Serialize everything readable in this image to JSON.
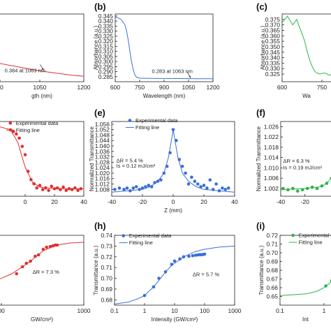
{
  "chart_data": [
    {
      "panel": "(a)",
      "type": "line",
      "xlabel": "…gth (nm)",
      "ylabel": "",
      "xlim": [
        900,
        1200
      ],
      "ylim": [
        0.4,
        0.3
      ],
      "x_ticks": [
        "…00",
        "1050",
        "1200"
      ],
      "y_ticks": [],
      "color": "#e03030",
      "annotations": [
        "0.384 at 1063 nm"
      ],
      "series": [
        {
          "x": [
            900,
            950,
            1000,
            1050,
            1100,
            1150,
            1200
          ],
          "y": [
            0.372,
            0.376,
            0.38,
            0.384,
            0.387,
            0.39,
            0.392
          ]
        }
      ]
    },
    {
      "panel": "(b)",
      "type": "line",
      "xlabel": "Wavelength (nm)",
      "ylabel": "Absorbance (a.u.)",
      "xlim": [
        600,
        1200
      ],
      "ylim": [
        0.28,
        0.347
      ],
      "x_ticks": [
        "600",
        "750",
        "900",
        "1050",
        "1200"
      ],
      "y_ticks": [
        "0.285",
        "0.290",
        "0.295",
        "0.300",
        "0.305",
        "0.310",
        "0.315",
        "0.320",
        "0.325",
        "0.330",
        "0.335",
        "0.340",
        "0.345"
      ],
      "color": "#3a6fd8",
      "annotations": [
        "0.283 at 1063 nm"
      ],
      "series": [
        {
          "x": [
            600,
            620,
            640,
            660,
            670,
            680,
            690,
            700,
            710,
            720,
            730,
            750,
            800,
            900,
            1000,
            1100,
            1200
          ],
          "y": [
            0.344,
            0.343,
            0.341,
            0.336,
            0.33,
            0.321,
            0.31,
            0.3,
            0.292,
            0.287,
            0.2845,
            0.2835,
            0.2833,
            0.2832,
            0.2831,
            0.283,
            0.283
          ]
        }
      ]
    },
    {
      "panel": "(c)",
      "type": "line",
      "xlabel": "Wa…",
      "ylabel": "Absorbance (a.u.)",
      "xlim": [
        600,
        800
      ],
      "ylim": [
        0.318,
        0.38
      ],
      "x_ticks": [
        "600",
        "750"
      ],
      "y_ticks": [
        "0.325",
        "0.330",
        "0.335",
        "0.340",
        "0.345",
        "0.350",
        "0.355",
        "0.360",
        "0.365",
        "0.370",
        "0.375"
      ],
      "color": "#2bb34a",
      "annotations": [],
      "series": [
        {
          "x": [
            600,
            620,
            640,
            655,
            665,
            675,
            685,
            695,
            705,
            715,
            725,
            740,
            760,
            780,
            800
          ],
          "y": [
            0.372,
            0.378,
            0.37,
            0.375,
            0.368,
            0.362,
            0.355,
            0.345,
            0.337,
            0.331,
            0.327,
            0.325,
            0.326,
            0.324,
            0.325
          ]
        }
      ]
    },
    {
      "panel": "(d)",
      "type": "scatter",
      "xlabel": "",
      "ylabel": "",
      "xlim": [
        -20,
        40
      ],
      "ylim": [
        0.98,
        1.07
      ],
      "x_ticks": [
        "…0",
        "0",
        "20",
        "40"
      ],
      "y_ticks": [],
      "color": "#e03030",
      "legend": [
        "Experimental data",
        "Fitting line"
      ],
      "annotations": [],
      "series": [
        {
          "name": "Experimental data",
          "x": [
            -10,
            -8,
            -6,
            -4,
            -2,
            0,
            2,
            4,
            6,
            8,
            10,
            12,
            14,
            16,
            18,
            20,
            22,
            24,
            26,
            28,
            30,
            32,
            34,
            36,
            38
          ],
          "y": [
            1.06,
            1.058,
            1.055,
            1.05,
            1.04,
            1.03,
            1.01,
            1.0,
            0.995,
            0.99,
            0.993,
            0.988,
            0.99,
            0.987,
            0.992,
            0.989,
            0.99,
            0.988,
            0.991,
            0.987,
            0.989,
            0.988,
            0.99,
            0.987,
            0.989
          ]
        },
        {
          "name": "Fitting line",
          "x": [
            -20,
            -10,
            -5,
            0,
            5,
            10,
            20,
            30,
            40
          ],
          "y": [
            1.065,
            1.06,
            1.045,
            1.015,
            0.997,
            0.991,
            0.989,
            0.989,
            0.989
          ]
        }
      ]
    },
    {
      "panel": "(e)",
      "type": "scatter",
      "xlabel": "Z (mm)",
      "ylabel": "Normalized Transmittance",
      "xlim": [
        -40,
        40
      ],
      "ylim": [
        1.003,
        1.058
      ],
      "x_ticks": [
        "-40",
        "-20",
        "0",
        "20",
        "40"
      ],
      "y_ticks": [
        "1.008",
        "1.012",
        "1.016",
        "1.020",
        "1.024",
        "1.028",
        "1.032",
        "1.036",
        "1.040",
        "1.044",
        "1.048",
        "1.052",
        "1.056"
      ],
      "color": "#3a6fd8",
      "legend": [
        "Experimental data",
        "Fitting line"
      ],
      "annotations": [
        "ΔR = 5.4 %",
        "Is = 0.12 mJ/cm²"
      ],
      "series": [
        {
          "name": "Experimental data",
          "x": [
            -38,
            -35,
            -32,
            -30,
            -28,
            -26,
            -24,
            -22,
            -20,
            -18,
            -16,
            -14,
            -12,
            -10,
            -8,
            -6,
            -4,
            -2,
            0,
            2,
            4,
            6,
            8,
            10,
            12,
            14,
            16,
            18,
            20,
            22,
            24,
            26,
            28,
            30,
            32,
            34,
            36
          ],
          "y": [
            1.008,
            1.009,
            1.008,
            1.009,
            1.007,
            1.009,
            1.01,
            1.008,
            1.009,
            1.01,
            1.011,
            1.01,
            1.013,
            1.014,
            1.015,
            1.02,
            1.025,
            1.035,
            1.052,
            1.044,
            1.03,
            1.025,
            1.02,
            1.012,
            1.017,
            1.014,
            1.012,
            1.01,
            1.011,
            1.009,
            1.015,
            1.008,
            1.012,
            1.007,
            1.009,
            1.008,
            1.009
          ]
        },
        {
          "name": "Fitting line",
          "x": [
            -40,
            -30,
            -20,
            -15,
            -10,
            -6,
            -3,
            0,
            3,
            6,
            10,
            15,
            20,
            30,
            40
          ],
          "y": [
            1.006,
            1.007,
            1.008,
            1.01,
            1.014,
            1.02,
            1.032,
            1.052,
            1.032,
            1.02,
            1.014,
            1.01,
            1.008,
            1.007,
            1.006
          ]
        }
      ]
    },
    {
      "panel": "(f)",
      "type": "scatter",
      "xlabel": "",
      "ylabel": "Normalized Transmittance",
      "xlim": [
        -40,
        5
      ],
      "ylim": [
        0.999,
        1.028
      ],
      "x_ticks": [
        "-40",
        "-20"
      ],
      "y_ticks": [
        "1.002",
        "1.006",
        "1.010",
        "1.014",
        "1.018",
        "1.022",
        "1.026"
      ],
      "color": "#2bb34a",
      "legend": [],
      "annotations": [
        "ΔR = 6.3 %",
        "Is = 0.19 mJ/cm²"
      ],
      "series": [
        {
          "name": "",
          "x": [
            -38,
            -34,
            -30,
            -26,
            -22,
            -18,
            -14,
            -10,
            -6,
            -2,
            2
          ],
          "y": [
            1.002,
            1.0015,
            1.002,
            1.001,
            1.0015,
            1.002,
            1.0025,
            1.002,
            1.003,
            1.004,
            1.006
          ]
        },
        {
          "name": "",
          "x": [
            -40,
            -20,
            -10,
            -5,
            0,
            5
          ],
          "y": [
            1.0015,
            1.002,
            1.0025,
            1.003,
            1.005,
            1.008
          ]
        }
      ]
    },
    {
      "panel": "(g)",
      "type": "scatter",
      "xlabel": "…GW/cm²)",
      "ylabel": "",
      "xlim": [
        0.5,
        1000
      ],
      "xscale": "log",
      "ylim": [
        0.0,
        1.0
      ],
      "x_ticks": [
        "…00",
        "1000"
      ],
      "y_ticks": [],
      "color": "#e03030",
      "legend": [],
      "annotations": [
        "ΔR = 7.3 %"
      ],
      "series": [
        {
          "name": "",
          "x": [
            3,
            5,
            7,
            10,
            15,
            20,
            30,
            40,
            55,
            70,
            85,
            100
          ],
          "y": [
            0.45,
            0.55,
            0.6,
            0.63,
            0.7,
            0.72,
            0.8,
            0.83,
            0.84,
            0.85,
            0.86,
            0.86
          ]
        },
        {
          "name": "",
          "x": [
            0.5,
            2,
            5,
            10,
            30,
            100,
            300,
            1000
          ],
          "y": [
            0.35,
            0.45,
            0.55,
            0.63,
            0.78,
            0.86,
            0.89,
            0.9
          ]
        }
      ]
    },
    {
      "panel": "(h)",
      "type": "scatter",
      "xlabel": "Intensity (GW/cm²)",
      "ylabel": "Transmittance (a.u.)",
      "xlim": [
        0.1,
        1000
      ],
      "xscale": "log",
      "ylim": [
        0.675,
        0.74
      ],
      "x_ticks": [
        "0.1",
        "1",
        "10",
        "100",
        "1000"
      ],
      "y_ticks": [
        "0.68",
        "0.69",
        "0.70",
        "0.71",
        "0.72",
        "0.73",
        "0.74"
      ],
      "color": "#3a6fd8",
      "legend": [
        "Experimental data",
        "Fitting line"
      ],
      "annotations": [
        "ΔR = 5.7 %"
      ],
      "series": [
        {
          "name": "Experimental data",
          "x": [
            1,
            2,
            3,
            5,
            8,
            10,
            15,
            20,
            30,
            40,
            50,
            60,
            70,
            80,
            90,
            100
          ],
          "y": [
            0.684,
            0.692,
            0.7,
            0.706,
            0.713,
            0.716,
            0.718,
            0.72,
            0.7205,
            0.721,
            0.7215,
            0.7218,
            0.722,
            0.722,
            0.7222,
            0.7225
          ]
        },
        {
          "name": "Fitting line",
          "x": [
            0.1,
            0.3,
            0.6,
            1,
            2,
            3,
            5,
            8,
            10,
            20,
            50,
            100,
            300,
            1000
          ],
          "y": [
            0.676,
            0.678,
            0.681,
            0.684,
            0.692,
            0.698,
            0.706,
            0.712,
            0.714,
            0.72,
            0.725,
            0.727,
            0.729,
            0.73
          ]
        }
      ]
    },
    {
      "panel": "(i)",
      "type": "scatter",
      "xlabel": "Int…",
      "ylabel": "Transmittance (a.u.)",
      "xlim": [
        0.1,
        1.8
      ],
      "xscale": "log",
      "ylim": [
        0.64,
        0.72
      ],
      "x_ticks": [
        "0.1",
        "1"
      ],
      "y_ticks": [
        "0.65",
        "0.66",
        "0.67",
        "0.68",
        "0.69",
        "0.70",
        "0.71",
        "0.72"
      ],
      "color": "#2bb34a",
      "legend": [
        "Experimental da…",
        "Fitting line"
      ],
      "annotations": [],
      "series": [
        {
          "name": "Experimental da…",
          "x": [
            1.1,
            1.5
          ],
          "y": [
            0.662,
            0.668
          ]
        },
        {
          "name": "Fitting line",
          "x": [
            0.1,
            0.2,
            0.4,
            0.7,
            1,
            1.4,
            1.8
          ],
          "y": [
            0.651,
            0.652,
            0.653,
            0.656,
            0.66,
            0.666,
            0.672
          ]
        }
      ]
    }
  ]
}
